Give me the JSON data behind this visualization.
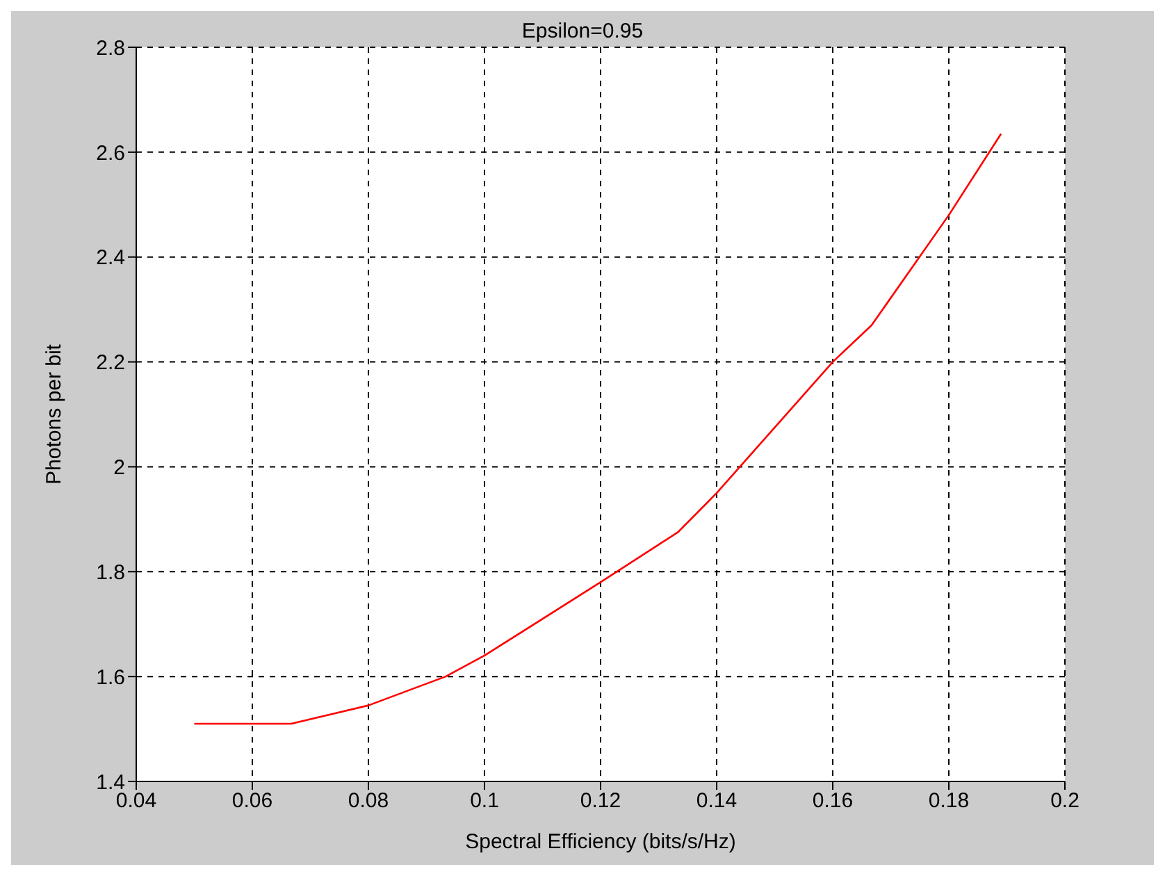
{
  "chart_data": {
    "type": "line",
    "title": "Epsilon=0.95",
    "xlabel": "Spectral Efficiency (bits/s/Hz)",
    "ylabel": "Photons per bit",
    "x": [
      0.05,
      0.0667,
      0.08,
      0.0933,
      0.1,
      0.12,
      0.1333,
      0.14,
      0.16,
      0.1667,
      0.18,
      0.189
    ],
    "series": [
      {
        "color": "#ff0000",
        "values": [
          1.51,
          1.51,
          1.545,
          1.6,
          1.64,
          1.78,
          1.875,
          1.95,
          2.2,
          2.27,
          2.48,
          2.635
        ]
      }
    ],
    "xlim": [
      0.04,
      0.2
    ],
    "xticks": [
      0.04,
      0.06,
      0.08,
      0.1,
      0.12,
      0.14,
      0.16,
      0.18,
      0.2
    ],
    "ylim": [
      1.4,
      2.8
    ],
    "yticks": [
      1.4,
      1.6,
      1.8,
      2,
      2.2,
      2.4,
      2.6,
      2.8
    ],
    "grid": true,
    "legend": false,
    "marker": "none",
    "line_style": "solid"
  }
}
